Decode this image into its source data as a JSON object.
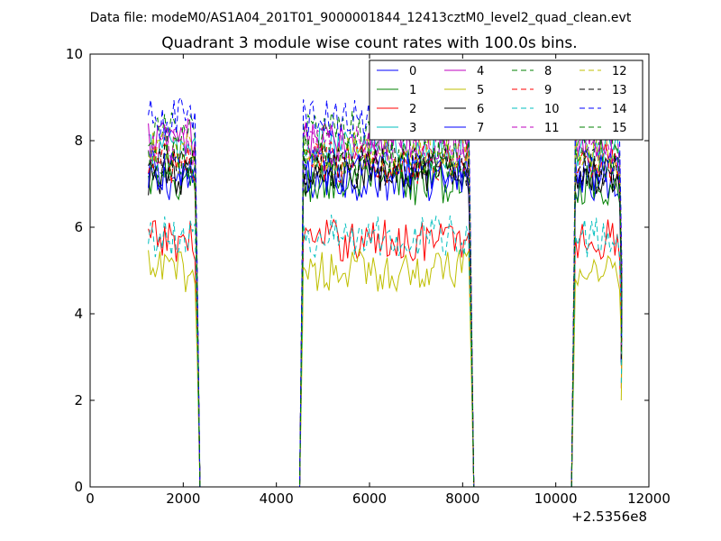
{
  "suptitle": "Data file: modeM0/AS1A04_201T01_9000001844_12413cztM0_level2_quad_clean.evt",
  "chart_data": {
    "type": "line",
    "title": "Quadrant 3 module wise count rates with 100.0s bins.",
    "xlabel": "",
    "ylabel": "",
    "xlim": [
      0,
      12000
    ],
    "ylim": [
      0,
      10
    ],
    "x_offset_label": "+2.5356e8",
    "x_ticks": [
      0,
      2000,
      4000,
      6000,
      8000,
      10000,
      12000
    ],
    "x_tick_labels": [
      "0",
      "2000",
      "4000",
      "6000",
      "8000",
      "10000",
      "12000"
    ],
    "y_ticks": [
      0,
      2,
      4,
      6,
      8,
      10
    ],
    "y_tick_labels": [
      "0",
      "2",
      "4",
      "6",
      "8",
      "10"
    ],
    "grid": false,
    "legend_position": "top-right",
    "series": [
      {
        "name": "0",
        "color": "#0000ff",
        "dash": "solid",
        "level": 7.1
      },
      {
        "name": "1",
        "color": "#008000",
        "dash": "solid",
        "level": 7.0
      },
      {
        "name": "2",
        "color": "#ff0000",
        "dash": "solid",
        "level": 5.7
      },
      {
        "name": "3",
        "color": "#00bfbf",
        "dash": "solid",
        "level": 7.8
      },
      {
        "name": "4",
        "color": "#bf00bf",
        "dash": "solid",
        "level": 8.0
      },
      {
        "name": "5",
        "color": "#bfbf00",
        "dash": "solid",
        "level": 5.0
      },
      {
        "name": "6",
        "color": "#000000",
        "dash": "solid",
        "level": 7.2
      },
      {
        "name": "7",
        "color": "#0000ff",
        "dash": "solid",
        "level": 7.3
      },
      {
        "name": "8",
        "color": "#008000",
        "dash": "dashed",
        "level": 8.2
      },
      {
        "name": "9",
        "color": "#ff0000",
        "dash": "dashed",
        "level": 7.5
      },
      {
        "name": "10",
        "color": "#00bfbf",
        "dash": "dashed",
        "level": 5.8
      },
      {
        "name": "11",
        "color": "#bf00bf",
        "dash": "dashed",
        "level": 7.9
      },
      {
        "name": "12",
        "color": "#bfbf00",
        "dash": "dashed",
        "level": 7.7
      },
      {
        "name": "13",
        "color": "#000000",
        "dash": "dashed",
        "level": 7.4
      },
      {
        "name": "14",
        "color": "#0000ff",
        "dash": "dashed",
        "level": 8.5
      },
      {
        "name": "15",
        "color": "#008000",
        "dash": "dashed",
        "level": 7.6
      }
    ],
    "active_segments": [
      {
        "x_start": 1250,
        "x_end": 2280
      },
      {
        "x_start": 4580,
        "x_end": 8160
      },
      {
        "x_start": 10420,
        "x_end": 11400
      }
    ],
    "gap_value": 0
  }
}
